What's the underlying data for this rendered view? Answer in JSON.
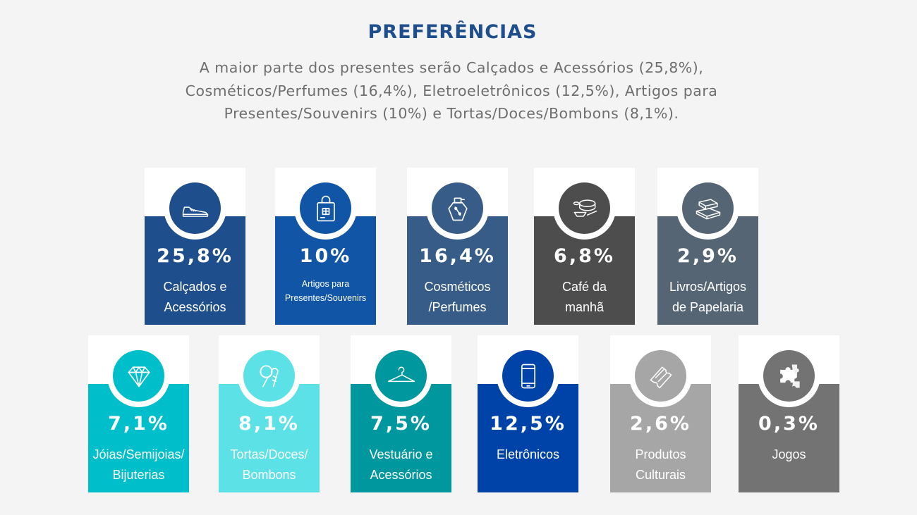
{
  "header": {
    "title": "PREFERÊNCIAS",
    "summary": "A maior parte dos presentes serão Calçados e Acessórios (25,8%), Cosméticos/Perfumes (16,4%), Eletroeletrônicos (12,5%), Artigos para Presentes/Souvenirs (10%) e Tortas/Doces/Bombons (8,1%)."
  },
  "cards": [
    {
      "percent": "25,8%",
      "label_line1": "Calçados e",
      "label_line2": "Acessórios",
      "icon": "sneaker-icon",
      "color": "#1f4e8c"
    },
    {
      "percent": "10%",
      "label_line1": "Artigos para",
      "label_line2": "Presentes/Souvenirs",
      "icon": "shopping-bag-icon",
      "color": "#1155a6"
    },
    {
      "percent": "16,4%",
      "label_line1": "Cosméticos",
      "label_line2": "/Perfumes",
      "icon": "perfume-icon",
      "color": "#365c87"
    },
    {
      "percent": "6,8%",
      "label_line1": "Café da",
      "label_line2": "manhã",
      "icon": "breakfast-icon",
      "color": "#4d4d4d"
    },
    {
      "percent": "2,9%",
      "label_line1": "Livros/Artigos",
      "label_line2": "de Papelaria",
      "icon": "books-icon",
      "color": "#566574"
    },
    {
      "percent": "7,1%",
      "label_line1": "Jóias/Semijoias/",
      "label_line2": "Bijuterias",
      "icon": "diamond-icon",
      "color": "#00bfca"
    },
    {
      "percent": "8,1%",
      "label_line1": "Tortas/Doces/",
      "label_line2": "Bombons",
      "icon": "candy-icon",
      "color": "#5ce1e6"
    },
    {
      "percent": "7,5%",
      "label_line1": "Vestuário e",
      "label_line2": "Acessórios",
      "icon": "hanger-icon",
      "color": "#00989e"
    },
    {
      "percent": "12,5%",
      "label_line1": "Eletrônicos",
      "label_line2": "",
      "icon": "smartphone-icon",
      "color": "#0043a8"
    },
    {
      "percent": "2,6%",
      "label_line1": "Produtos",
      "label_line2": "Culturais",
      "icon": "tickets-icon",
      "color": "#a6a6a6"
    },
    {
      "percent": "0,3%",
      "label_line1": "Jogos",
      "label_line2": "",
      "icon": "puzzle-icon",
      "color": "#737373"
    }
  ]
}
